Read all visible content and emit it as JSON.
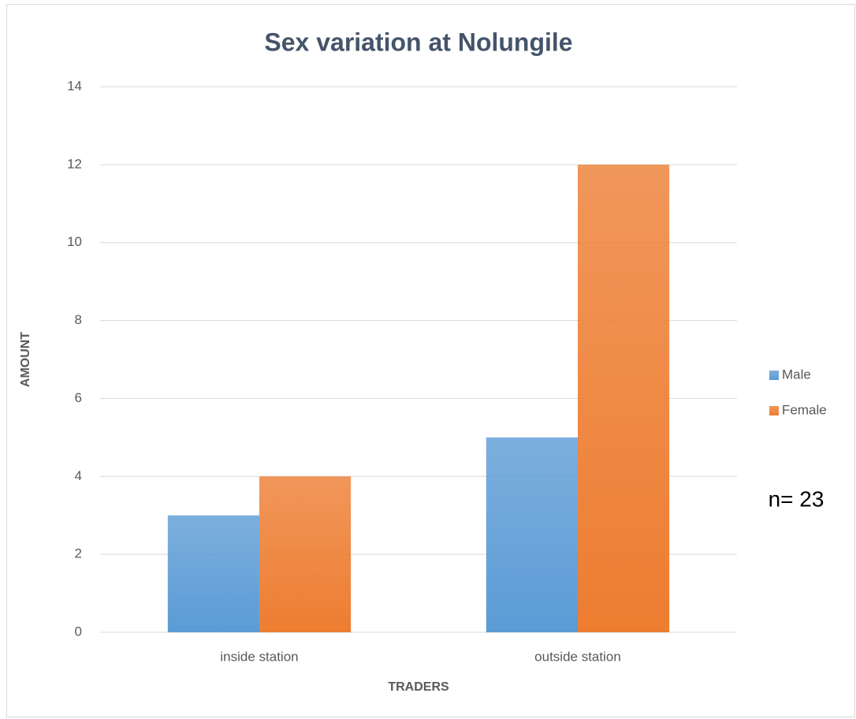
{
  "chart_data": {
    "type": "bar",
    "title": "Sex variation at Nolungile",
    "x_label": "TRADERS",
    "y_label": "AMOUNT",
    "categories": [
      "inside station",
      "outside station"
    ],
    "series": [
      {
        "name": "Male",
        "color": "#5b9bd5",
        "values": [
          3,
          5
        ]
      },
      {
        "name": "Female",
        "color": "#ed7d31",
        "values": [
          4,
          12
        ]
      }
    ],
    "ylim": [
      0,
      14
    ],
    "yticks": [
      0,
      2,
      4,
      6,
      8,
      10,
      12,
      14
    ],
    "grid": true,
    "legend": "right",
    "annotation": "n= 23"
  }
}
